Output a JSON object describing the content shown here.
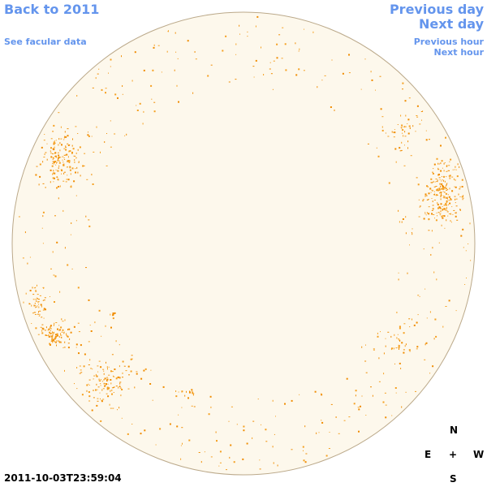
{
  "nav": {
    "back": "Back to 2011",
    "facular": "See facular data",
    "previous_day": "Previous day",
    "next_day": "Next day",
    "previous_hour": "Previous hour",
    "next_hour": "Next hour"
  },
  "timestamp": "2011-10-03T23:59:04",
  "compass": {
    "north": "N",
    "east": "E",
    "center": "+",
    "west": "W",
    "south": "S"
  }
}
